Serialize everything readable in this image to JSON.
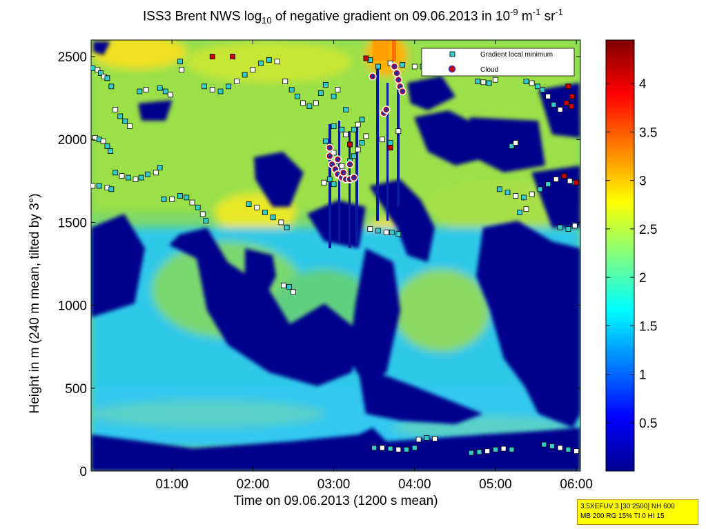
{
  "chart_data": {
    "type": "heatmap",
    "title_parts": {
      "pre": "ISS3 Brent NWS log",
      "sub": "10",
      "mid": " of negative gradient on 09.06.2013 in 10",
      "sup1": "-9",
      "mid2": " m",
      "sup2": "-1",
      "mid3": " sr",
      "sup3": "-1"
    },
    "xlabel": "Time on 09.06.2013 (1200 s mean)",
    "ylabel": "Height in m (240 m mean, tilted by 3°)",
    "x_range_hours": [
      0.0,
      6.05
    ],
    "x_ticks": [
      {
        "value": 1,
        "label": "01:00"
      },
      {
        "value": 2,
        "label": "02:00"
      },
      {
        "value": 3,
        "label": "03:00"
      },
      {
        "value": 4,
        "label": "04:00"
      },
      {
        "value": 5,
        "label": "05:00"
      },
      {
        "value": 6,
        "label": "06:00"
      }
    ],
    "ylim": [
      0,
      2600
    ],
    "y_ticks": [
      0,
      500,
      1000,
      1500,
      2000,
      2500
    ],
    "colorbar": {
      "range": [
        0,
        4.45
      ],
      "ticks": [
        "0.5",
        "1",
        "1.5",
        "2",
        "2.5",
        "3",
        "3.5",
        "4"
      ],
      "tick_values": [
        0.5,
        1,
        1.5,
        2,
        2.5,
        3,
        3.5,
        4
      ],
      "colormap": "jet"
    },
    "legend": {
      "placement": "top-right",
      "entries": [
        {
          "label": "Gradient local minimum",
          "marker": "square",
          "color": "#33cccc"
        },
        {
          "label": "Cloud",
          "marker": "circle",
          "color": "#cc0000"
        }
      ]
    },
    "gradient_minima_series": [
      [
        [
          0.02,
          2430
        ],
        [
          0.08,
          2420
        ],
        [
          0.12,
          2400
        ],
        [
          0.16,
          2380
        ],
        [
          0.2,
          2370
        ],
        [
          0.25,
          2320
        ]
      ],
      [
        [
          0.05,
          2010
        ],
        [
          0.1,
          2000
        ],
        [
          0.15,
          1990
        ],
        [
          0.2,
          1960
        ],
        [
          0.24,
          1930
        ]
      ],
      [
        [
          0.02,
          1720
        ],
        [
          0.1,
          1720
        ],
        [
          0.2,
          1710
        ],
        [
          0.25,
          1700
        ]
      ],
      [
        [
          0.3,
          1800
        ],
        [
          0.38,
          1780
        ],
        [
          0.46,
          1770
        ],
        [
          0.55,
          1760
        ],
        [
          0.62,
          1770
        ],
        [
          0.7,
          1790
        ],
        [
          0.8,
          1800
        ],
        [
          0.85,
          1830
        ]
      ],
      [
        [
          0.3,
          2180
        ],
        [
          0.36,
          2140
        ],
        [
          0.42,
          2110
        ],
        [
          0.48,
          2080
        ]
      ],
      [
        [
          0.6,
          2290
        ],
        [
          0.68,
          2300
        ],
        [
          0.85,
          2310
        ],
        [
          0.92,
          2290
        ],
        [
          0.98,
          2270
        ]
      ],
      [
        [
          0.9,
          1640
        ],
        [
          1.0,
          1640
        ],
        [
          1.1,
          1660
        ],
        [
          1.18,
          1650
        ],
        [
          1.25,
          1620
        ],
        [
          1.32,
          1590
        ],
        [
          1.38,
          1550
        ],
        [
          1.42,
          1510
        ]
      ],
      [
        [
          1.1,
          2470
        ],
        [
          1.12,
          2420
        ]
      ],
      [
        [
          1.4,
          2320
        ],
        [
          1.5,
          2300
        ],
        [
          1.6,
          2290
        ],
        [
          1.7,
          2320
        ],
        [
          1.8,
          2350
        ],
        [
          1.9,
          2390
        ],
        [
          2.0,
          2420
        ],
        [
          2.1,
          2460
        ],
        [
          2.2,
          2480
        ],
        [
          2.3,
          2470
        ]
      ],
      [
        [
          1.95,
          1610
        ],
        [
          2.05,
          1590
        ],
        [
          2.15,
          1560
        ],
        [
          2.25,
          1530
        ],
        [
          2.35,
          1500
        ],
        [
          2.42,
          1470
        ]
      ],
      [
        [
          2.4,
          2350
        ],
        [
          2.48,
          2300
        ],
        [
          2.55,
          2260
        ],
        [
          2.62,
          2220
        ],
        [
          2.7,
          2200
        ],
        [
          2.78,
          2220
        ],
        [
          2.84,
          2280
        ],
        [
          2.9,
          2330
        ]
      ],
      [
        [
          2.38,
          1120
        ],
        [
          2.45,
          1110
        ],
        [
          2.5,
          1080
        ]
      ],
      [
        [
          2.9,
          1990
        ],
        [
          2.95,
          1960
        ],
        [
          3.0,
          1920
        ],
        [
          3.05,
          1870
        ],
        [
          3.1,
          1840
        ],
        [
          3.2,
          1870
        ],
        [
          3.25,
          1900
        ],
        [
          3.3,
          1940
        ],
        [
          3.35,
          1980
        ],
        [
          3.4,
          2020
        ]
      ],
      [
        [
          3.0,
          2080
        ],
        [
          3.1,
          2060
        ],
        [
          3.15,
          2030
        ],
        [
          3.25,
          2060
        ],
        [
          3.3,
          2090
        ],
        [
          3.35,
          2120
        ]
      ],
      [
        [
          3.0,
          2260
        ],
        [
          3.05,
          2300
        ],
        [
          3.15,
          2180
        ]
      ],
      [
        [
          2.88,
          1740
        ],
        [
          2.95,
          1760
        ],
        [
          3.0,
          1730
        ]
      ],
      [
        [
          3.45,
          1460
        ],
        [
          3.55,
          1450
        ],
        [
          3.65,
          1440
        ],
        [
          3.72,
          1440
        ],
        [
          3.8,
          1430
        ]
      ],
      [
        [
          3.6,
          2000
        ],
        [
          3.7,
          1980
        ],
        [
          3.8,
          2050
        ]
      ],
      [
        [
          3.45,
          2480
        ],
        [
          3.55,
          2440
        ],
        [
          3.7,
          2460
        ],
        [
          3.85,
          2450
        ],
        [
          4.0,
          2440
        ],
        [
          4.1,
          2440
        ]
      ],
      [
        [
          3.5,
          140
        ],
        [
          3.6,
          140
        ],
        [
          3.7,
          135
        ],
        [
          3.8,
          130
        ],
        [
          3.9,
          130
        ],
        [
          4.0,
          140
        ]
      ],
      [
        [
          4.05,
          190
        ],
        [
          4.15,
          200
        ],
        [
          4.25,
          195
        ]
      ],
      [
        [
          4.7,
          110
        ],
        [
          4.8,
          115
        ],
        [
          4.9,
          120
        ],
        [
          5.0,
          130
        ],
        [
          5.1,
          135
        ],
        [
          5.2,
          130
        ]
      ],
      [
        [
          4.78,
          2350
        ],
        [
          4.85,
          2345
        ],
        [
          4.92,
          2340
        ],
        [
          5.0,
          2360
        ]
      ],
      [
        [
          5.05,
          1700
        ],
        [
          5.15,
          1680
        ],
        [
          5.25,
          1660
        ],
        [
          5.35,
          1650
        ],
        [
          5.45,
          1670
        ],
        [
          5.55,
          1700
        ],
        [
          5.65,
          1730
        ],
        [
          5.75,
          1760
        ],
        [
          5.85,
          1780
        ],
        [
          5.92,
          1750
        ],
        [
          5.98,
          1740
        ]
      ],
      [
        [
          5.3,
          1560
        ],
        [
          5.38,
          1580
        ]
      ],
      [
        [
          5.38,
          2350
        ],
        [
          5.45,
          2340
        ],
        [
          5.52,
          2320
        ],
        [
          5.58,
          2300
        ],
        [
          5.65,
          2260
        ],
        [
          5.72,
          2210
        ],
        [
          5.8,
          2180
        ]
      ],
      [
        [
          5.6,
          160
        ],
        [
          5.7,
          150
        ],
        [
          5.8,
          140
        ],
        [
          5.9,
          130
        ],
        [
          6.0,
          120
        ]
      ],
      [
        [
          5.8,
          1470
        ],
        [
          5.9,
          1460
        ],
        [
          5.98,
          1480
        ]
      ],
      [
        [
          5.2,
          1960
        ],
        [
          5.25,
          1980
        ]
      ]
    ],
    "cloud_points": [
      [
        2.95,
        1950
      ],
      [
        2.95,
        1900
      ],
      [
        2.98,
        1850
      ],
      [
        3.02,
        1820
      ],
      [
        3.05,
        1790
      ],
      [
        3.1,
        1770
      ],
      [
        3.15,
        1760
      ],
      [
        3.2,
        1760
      ],
      [
        3.25,
        1770
      ],
      [
        3.05,
        1880
      ],
      [
        3.12,
        1800
      ],
      [
        3.2,
        1850
      ],
      [
        3.48,
        2380
      ],
      [
        3.62,
        2160
      ],
      [
        3.65,
        2180
      ],
      [
        3.75,
        2440
      ],
      [
        3.78,
        2400
      ],
      [
        3.8,
        2360
      ],
      [
        3.82,
        2320
      ],
      [
        3.85,
        2290
      ]
    ],
    "dark_red_markers": [
      [
        1.5,
        2500
      ],
      [
        1.75,
        2500
      ],
      [
        3.2,
        1970
      ],
      [
        3.4,
        2490
      ],
      [
        3.7,
        1950
      ],
      [
        5.9,
        2320
      ],
      [
        5.95,
        2260
      ],
      [
        6.0,
        1740
      ],
      [
        5.85,
        1780
      ],
      [
        5.88,
        2220
      ],
      [
        5.94,
        2200
      ]
    ]
  },
  "infobox": {
    "line1": "3.5XEFUV 3 [30 2500] NH 600",
    "line2": "MB 200 RG 15% TI 0 HI 15"
  }
}
